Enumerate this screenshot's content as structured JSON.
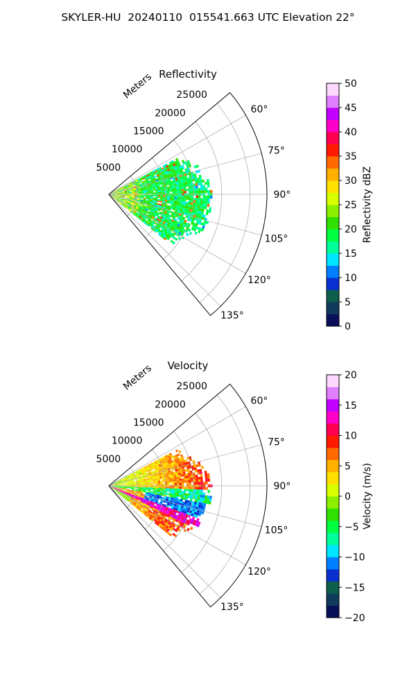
{
  "figure": {
    "suptitle": "SKYLER-HU  20240110  015541.663 UTC Elevation 22°"
  },
  "chart_data": [
    {
      "type": "heatmap",
      "projection": "polar-sector",
      "title": "Reflectivity",
      "radial_label": "Meters",
      "radial_ticks": [
        5000,
        10000,
        15000,
        20000,
        25000
      ],
      "radial_tick_labels": [
        "5000",
        "10000",
        "15000",
        "20000",
        "25000"
      ],
      "radial_range": [
        0,
        28000
      ],
      "angle_ticks": [
        60,
        75,
        90,
        105,
        120,
        135
      ],
      "angle_tick_labels": [
        "60°",
        "75°",
        "90°",
        "105°",
        "120°",
        "135°"
      ],
      "angle_range": [
        50,
        140
      ],
      "grid": true,
      "data_extent_m": 18000,
      "data_angle_range": [
        62,
        128
      ],
      "colorbar": {
        "label": "Reflectivity dBZ",
        "min": 0,
        "max": 50,
        "ticks": [
          0,
          5,
          10,
          15,
          20,
          25,
          30,
          35,
          40,
          45,
          50
        ],
        "tick_labels": [
          "0",
          "5",
          "10",
          "15",
          "20",
          "25",
          "30",
          "35",
          "40",
          "45",
          "50"
        ],
        "colors": [
          "#0a0f5a",
          "#103a5a",
          "#0d5e4a",
          "#0a2fd0",
          "#0080ff",
          "#00e5ff",
          "#00ff9a",
          "#00ff40",
          "#30e000",
          "#8cf000",
          "#d8ff00",
          "#ffe000",
          "#ffb000",
          "#ff6a00",
          "#ff1a00",
          "#ff0050",
          "#ff00c8",
          "#c000ff",
          "#e080ff",
          "#ffd8ff"
        ]
      }
    },
    {
      "type": "heatmap",
      "projection": "polar-sector",
      "title": "Velocity",
      "radial_label": "Meters",
      "radial_ticks": [
        5000,
        10000,
        15000,
        20000,
        25000
      ],
      "radial_tick_labels": [
        "5000",
        "10000",
        "15000",
        "20000",
        "25000"
      ],
      "radial_range": [
        0,
        28000
      ],
      "angle_ticks": [
        60,
        75,
        90,
        105,
        120,
        135
      ],
      "angle_tick_labels": [
        "60°",
        "75°",
        "90°",
        "105°",
        "120°",
        "135°"
      ],
      "angle_range": [
        50,
        140
      ],
      "grid": true,
      "data_extent_m": 18000,
      "data_angle_range": [
        62,
        128
      ],
      "colorbar": {
        "label": "Velocity (m/s)",
        "min": -20,
        "max": 20,
        "ticks": [
          -20,
          -15,
          -10,
          -5,
          0,
          5,
          10,
          15,
          20
        ],
        "tick_labels": [
          "−20",
          "−15",
          "−10",
          "−5",
          "0",
          "5",
          "10",
          "15",
          "20"
        ],
        "colors": [
          "#0a0f5a",
          "#103a5a",
          "#0d5e4a",
          "#0a2fd0",
          "#0080ff",
          "#00e5ff",
          "#00ff9a",
          "#00ff40",
          "#30e000",
          "#8cf000",
          "#d8ff00",
          "#ffe000",
          "#ffb000",
          "#ff6a00",
          "#ff1a00",
          "#ff0050",
          "#ff00c8",
          "#c000ff",
          "#e080ff",
          "#ffd8ff"
        ]
      }
    }
  ]
}
